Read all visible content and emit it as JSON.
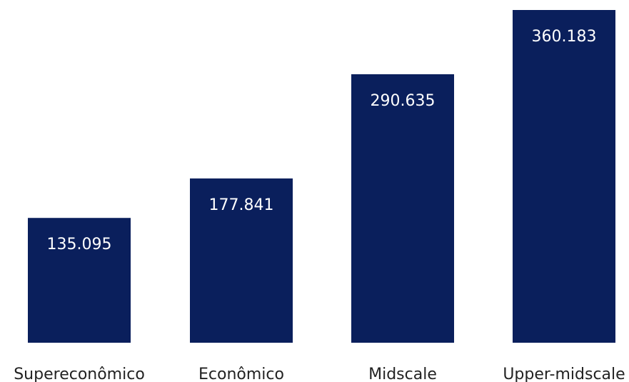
{
  "chart_data": {
    "type": "bar",
    "categories": [
      "Supereconômico",
      "Econômico",
      "Midscale",
      "Upper-midscale"
    ],
    "values": [
      135.095,
      177.841,
      290.635,
      360.183
    ],
    "value_labels": [
      "135.095",
      "177.841",
      "290.635",
      "360.183"
    ],
    "title": "",
    "xlabel": "",
    "ylabel": "",
    "ylim": [
      0,
      360.183
    ],
    "grid": false,
    "legend": "none",
    "bar_color": "#0a1f5c",
    "value_label_color": "#ffffff"
  }
}
